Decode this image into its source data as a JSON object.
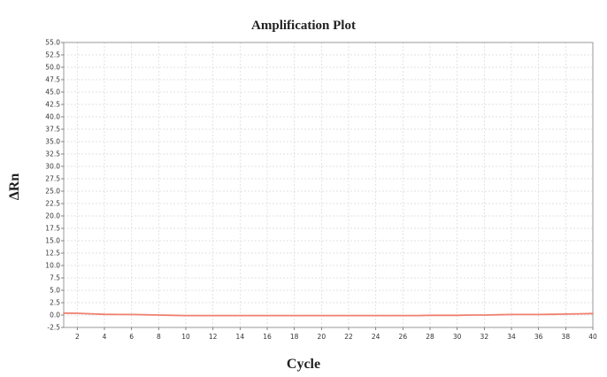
{
  "chart_data": {
    "type": "line",
    "title": "Amplification Plot",
    "xlabel": "Cycle",
    "ylabel": "ΔRn",
    "xlim": [
      1,
      40
    ],
    "ylim": [
      -2.5,
      55.0
    ],
    "x_ticks": [
      2,
      4,
      6,
      8,
      10,
      12,
      14,
      16,
      18,
      20,
      22,
      24,
      26,
      28,
      30,
      32,
      34,
      36,
      38,
      40
    ],
    "y_ticks": [
      -2.5,
      0.0,
      2.5,
      5.0,
      7.5,
      10.0,
      12.5,
      15.0,
      17.5,
      20.0,
      22.5,
      25.0,
      27.5,
      30.0,
      32.5,
      35.0,
      37.5,
      40.0,
      42.5,
      45.0,
      47.5,
      50.0,
      52.5,
      55.0
    ],
    "grid": true,
    "series": [
      {
        "color": "#f08070",
        "x": [
          1,
          2,
          3,
          4,
          5,
          6,
          7,
          8,
          9,
          10,
          11,
          12,
          13,
          14,
          15,
          16,
          17,
          18,
          19,
          20,
          21,
          22,
          23,
          24,
          25,
          26,
          27,
          28,
          29,
          30,
          31,
          32,
          33,
          34,
          35,
          36,
          37,
          38,
          39,
          40
        ],
        "values": [
          0.4,
          0.35,
          0.25,
          0.15,
          0.1,
          0.1,
          0.05,
          0.0,
          -0.05,
          -0.1,
          -0.1,
          -0.1,
          -0.1,
          -0.1,
          -0.1,
          -0.1,
          -0.1,
          -0.1,
          -0.1,
          -0.1,
          -0.1,
          -0.1,
          -0.1,
          -0.1,
          -0.1,
          -0.1,
          -0.1,
          -0.05,
          -0.05,
          -0.05,
          0.0,
          0.0,
          0.05,
          0.1,
          0.1,
          0.1,
          0.15,
          0.2,
          0.25,
          0.3
        ]
      }
    ]
  }
}
